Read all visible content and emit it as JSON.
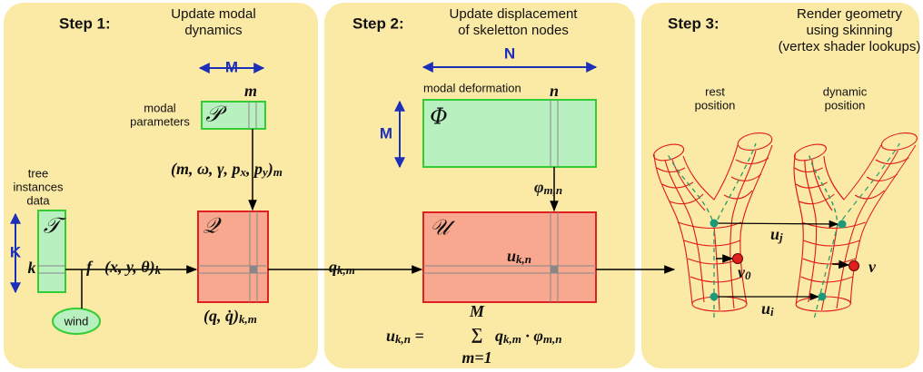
{
  "panels": [
    {
      "step": "Step 1:",
      "title": [
        "Update modal",
        "dynamics"
      ]
    },
    {
      "step": "Step 2:",
      "title": [
        "Update displacement",
        "of skeletton nodes"
      ]
    },
    {
      "step": "Step 3:",
      "title": [
        "Render geometry",
        "using skinning",
        "(vertex shader lookups)"
      ]
    }
  ],
  "step1": {
    "dim_M": "M",
    "index_m": "m",
    "modal_parameters": [
      "modal",
      "parameters"
    ],
    "P": "𝒫",
    "params_tuple": [
      "(m, ω, γ, p",
      "x",
      ", p",
      "y",
      ")",
      "m"
    ],
    "tree_instances": [
      "tree",
      "instances",
      "data"
    ],
    "T": "𝒯",
    "dim_K": "K",
    "index_k": "k",
    "force": [
      "f⃗(x, y, θ)",
      "k"
    ],
    "Q": "𝒬",
    "state": [
      "(q, q̇)",
      "k,m"
    ],
    "wind": "wind"
  },
  "step2": {
    "dim_N": "N",
    "modal_deformation": "modal deformation",
    "index_n": "n",
    "Phi": "Φ",
    "dim_M": "M",
    "phi": [
      "φ",
      "m,n"
    ],
    "U": "𝒰",
    "u_kn": [
      "u",
      "k,n"
    ],
    "q_km": [
      "q",
      "k,m"
    ],
    "formula_left": [
      "u",
      "k,n",
      " = "
    ],
    "sum_symbol": "∑",
    "sum_upper": "M",
    "sum_lower": "m=1",
    "formula_right": [
      "q",
      "k,m",
      " · φ",
      "m,n"
    ]
  },
  "step3": {
    "rest_position": [
      "rest",
      "position"
    ],
    "dynamic_position": [
      "dynamic",
      "position"
    ],
    "u_j": [
      "u",
      "j"
    ],
    "v0": [
      "v",
      "0"
    ],
    "v": "v",
    "u_i": [
      "u",
      "i"
    ]
  }
}
